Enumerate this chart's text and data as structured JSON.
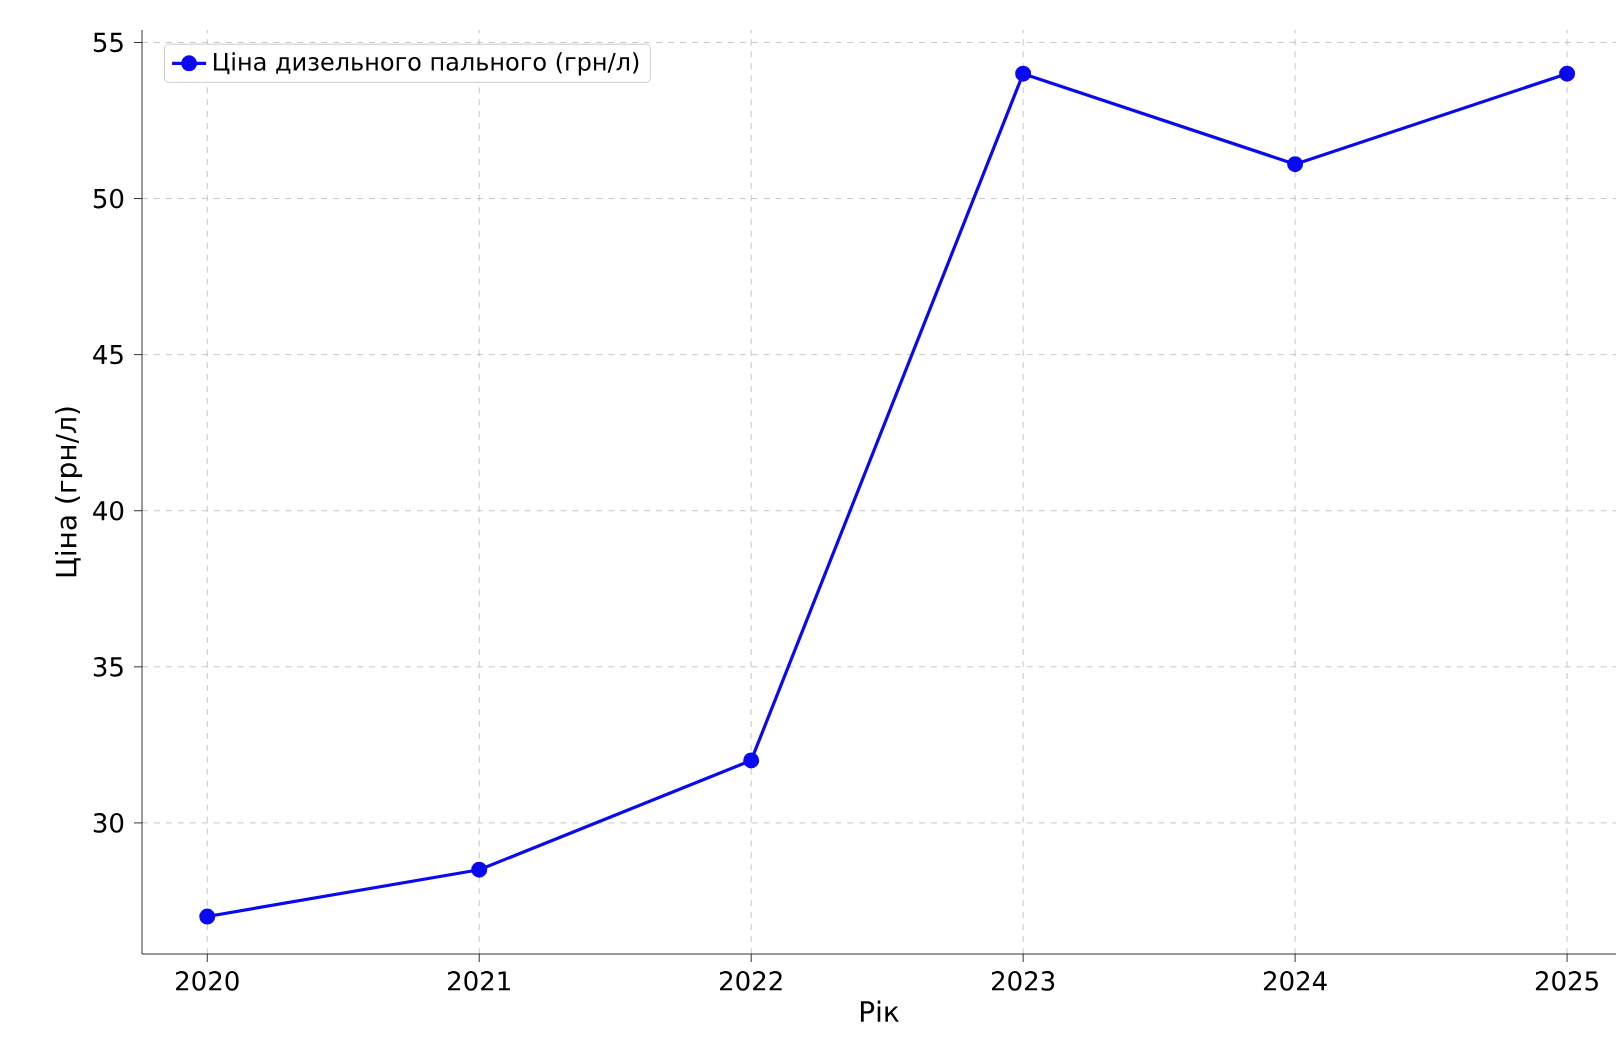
{
  "chart_data": {
    "type": "line",
    "xlabel": "Рік",
    "ylabel": "Ціна (грн/л)",
    "x": [
      2020,
      2021,
      2022,
      2023,
      2024,
      2025
    ],
    "series": [
      {
        "name": "Ціна дизельного пального (грн/л)",
        "color": "#0a0af0",
        "values": [
          27.0,
          28.5,
          32.0,
          54.0,
          51.1,
          54.0
        ]
      }
    ],
    "xlim": [
      2019.76,
      2025.18
    ],
    "xticks": [
      2020,
      2021,
      2022,
      2023,
      2024,
      2025
    ],
    "ylim": [
      25.8,
      55.4
    ],
    "yticks": [
      30,
      35,
      40,
      45,
      50,
      55
    ],
    "grid": true,
    "legend": "top left",
    "marker": "circle",
    "line_style": "solid"
  }
}
